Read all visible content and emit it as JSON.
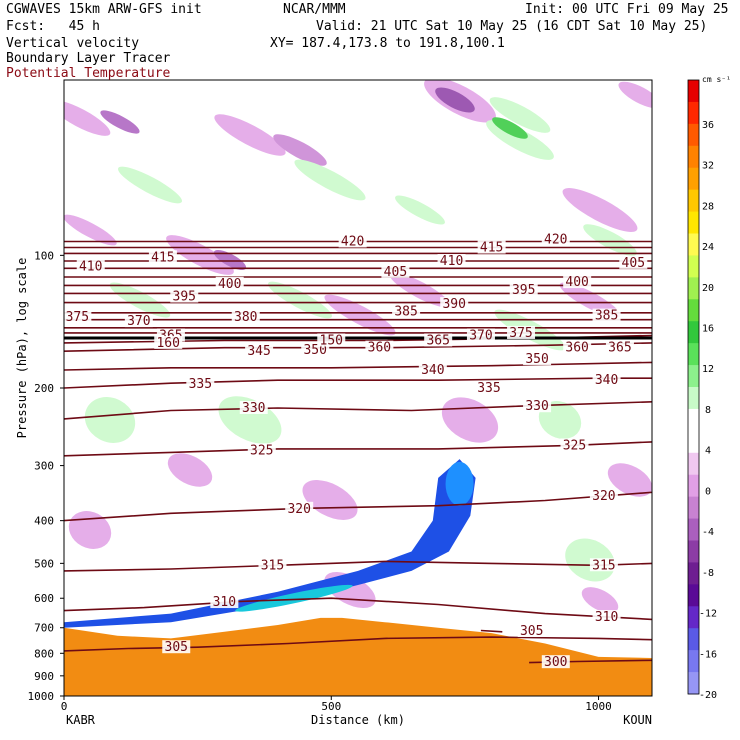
{
  "header": {
    "model_line": "CGWAVES 15km ARW-GFS init",
    "fcst_line": "Fcst:   45 h",
    "field1": "Vertical velocity",
    "field2": "Boundary Layer Tracer",
    "field3": "Potential Temperature",
    "center": "NCAR/MMM",
    "init": "Init: 00 UTC Fri 09 May 25",
    "valid": "Valid: 21 UTC Sat 10 May 25 (16 CDT Sat 10 May 25)",
    "xy": "XY= 187.4,173.8 to 191.8,100.1"
  },
  "colors": {
    "theta": "#6e0a14",
    "theta_label": "#6e0a14",
    "terrain": "#f28c12",
    "tracer_outer": "#1e50e6",
    "tracer_mid": "#1e90ff",
    "tracer_inner": "#18c8dc"
  },
  "chart_data": {
    "type": "contour",
    "xlabel": "Distance (km)",
    "ylabel": "Pressure (hPa), log scale",
    "xlim": [
      0,
      1100
    ],
    "ylim": [
      1000,
      40
    ],
    "x_ticks": [
      "0",
      "500",
      "1000"
    ],
    "x_tick_values": [
      0,
      500,
      1000
    ],
    "y_ticks": [
      "100",
      "200",
      "300",
      "400",
      "500",
      "600",
      "700",
      "800",
      "900",
      "1000"
    ],
    "y_tick_values": [
      100,
      200,
      300,
      400,
      500,
      600,
      700,
      800,
      900,
      1000
    ],
    "left_endpoint": "KABR",
    "right_endpoint": "KOUN",
    "colorbar": {
      "unit": "cm s⁻¹",
      "labels": [
        "36",
        "32",
        "28",
        "24",
        "20",
        "16",
        "12",
        "8",
        "4",
        "0",
        "-4",
        "-8",
        "-12",
        "-16",
        "-20"
      ],
      "colors": [
        "#e60000",
        "#ff2800",
        "#ff5a00",
        "#ff8200",
        "#ffa000",
        "#ffc800",
        "#ffe600",
        "#fffa50",
        "#d2ff50",
        "#a0f050",
        "#64dc3c",
        "#32c83c",
        "#5ae15a",
        "#8cf08c",
        "#c8fac8",
        "#ffffff",
        "#ffffff",
        "#f0c8f0",
        "#e1a0e6",
        "#c882d2",
        "#aa5fbe",
        "#8c3ca5",
        "#6e1e91",
        "#5a0a96",
        "#6428c8",
        "#5a5ae6",
        "#7878f0",
        "#9696f5"
      ]
    },
    "isentropes": [
      {
        "theta": 300,
        "label": "300",
        "points": [
          [
            870,
            840
          ],
          [
            960,
            835
          ],
          [
            1100,
            830
          ]
        ],
        "label_at": [
          920,
          838
        ]
      },
      {
        "theta": 305,
        "label": "305",
        "points": [
          [
            0,
            790
          ],
          [
            120,
            780
          ],
          [
            250,
            775
          ],
          [
            420,
            760
          ],
          [
            600,
            740
          ],
          [
            800,
            735
          ],
          [
            1000,
            740
          ],
          [
            1100,
            745
          ]
        ],
        "label_at": [
          210,
          775
        ]
      },
      {
        "theta": 305,
        "label": "305",
        "points": [
          [
            780,
            710
          ],
          [
            820,
            715
          ]
        ],
        "label_at": [
          875,
          712
        ]
      },
      {
        "theta": 310,
        "label": "310",
        "points": [
          [
            0,
            640
          ],
          [
            150,
            630
          ],
          [
            330,
            610
          ],
          [
            500,
            600
          ],
          [
            700,
            620
          ],
          [
            900,
            650
          ],
          [
            1100,
            670
          ]
        ],
        "label_at": [
          300,
          612
        ]
      },
      {
        "theta": 310,
        "label": "310",
        "points": [],
        "label_at": [
          1015,
          662
        ]
      },
      {
        "theta": 315,
        "label": "315",
        "points": [
          [
            0,
            520
          ],
          [
            200,
            515
          ],
          [
            400,
            505
          ],
          [
            600,
            495
          ],
          [
            800,
            500
          ],
          [
            1000,
            505
          ],
          [
            1100,
            500
          ]
        ],
        "label_at": [
          390,
          505
        ]
      },
      {
        "theta": 315,
        "label": "315",
        "points": [],
        "label_at": [
          1010,
          505
        ]
      },
      {
        "theta": 320,
        "label": "320",
        "points": [
          [
            0,
            400
          ],
          [
            200,
            385
          ],
          [
            450,
            375
          ],
          [
            700,
            370
          ],
          [
            900,
            360
          ],
          [
            1100,
            345
          ]
        ],
        "label_at": [
          440,
          376
        ]
      },
      {
        "theta": 320,
        "label": "320",
        "points": [],
        "label_at": [
          1010,
          352
        ]
      },
      {
        "theta": 325,
        "label": "325",
        "points": [
          [
            0,
            285
          ],
          [
            200,
            280
          ],
          [
            400,
            275
          ],
          [
            700,
            275
          ],
          [
            950,
            270
          ],
          [
            1100,
            265
          ]
        ],
        "label_at": [
          370,
          277
        ]
      },
      {
        "theta": 325,
        "label": "325",
        "points": [],
        "label_at": [
          955,
          270
        ]
      },
      {
        "theta": 330,
        "label": "330",
        "points": [
          [
            0,
            235
          ],
          [
            200,
            225
          ],
          [
            400,
            222
          ],
          [
            650,
            225
          ],
          [
            850,
            220
          ],
          [
            1100,
            215
          ]
        ],
        "label_at": [
          355,
          222
        ]
      },
      {
        "theta": 330,
        "label": "330",
        "points": [],
        "label_at": [
          885,
          220
        ]
      },
      {
        "theta": 335,
        "label": "335",
        "points": [
          [
            0,
            200
          ],
          [
            200,
            195
          ],
          [
            400,
            192
          ],
          [
            700,
            192
          ],
          [
            1000,
            190
          ],
          [
            1100,
            190
          ]
        ],
        "label_at": [
          255,
          196
        ]
      },
      {
        "theta": 335,
        "label": "335",
        "points": [],
        "label_at": [
          795,
          200
        ]
      },
      {
        "theta": 340,
        "label": "340",
        "points": [
          [
            0,
            182
          ],
          [
            200,
            180
          ],
          [
            500,
            180
          ],
          [
            800,
            178
          ],
          [
            1100,
            175
          ]
        ],
        "label_at": [
          690,
          182
        ]
      },
      {
        "theta": 340,
        "label": "340",
        "points": [],
        "label_at": [
          1015,
          192
        ]
      },
      {
        "theta": 345,
        "label": "345",
        "points": [
          [
            0,
            165
          ],
          [
            300,
            162
          ],
          [
            600,
            162
          ],
          [
            900,
            160
          ],
          [
            1100,
            158
          ]
        ],
        "label_at": [
          365,
          165
        ]
      },
      {
        "theta": 350,
        "label": "350",
        "points": [
          [
            0,
            158
          ],
          [
            300,
            156
          ],
          [
            600,
            156
          ],
          [
            900,
            154
          ],
          [
            1100,
            152
          ]
        ],
        "label_at": [
          470,
          164
        ]
      },
      {
        "theta": 350,
        "label": "350",
        "points": [],
        "label_at": [
          885,
          172
        ]
      },
      {
        "theta": 360,
        "label": "360",
        "points": [
          [
            0,
            150
          ],
          [
            500,
            150
          ],
          [
            1100,
            150
          ]
        ],
        "label_at": [
          590,
          162
        ]
      },
      {
        "theta": 360,
        "label": "360",
        "points": [],
        "label_at": [
          960,
          162
        ]
      },
      {
        "theta": 365,
        "label": "365",
        "points": [
          [
            0,
            146
          ],
          [
            500,
            146
          ],
          [
            1100,
            146
          ]
        ],
        "label_at": [
          200,
          152
        ]
      },
      {
        "theta": 365,
        "label": "365",
        "points": [],
        "label_at": [
          700,
          156
        ]
      },
      {
        "theta": 365,
        "label": "365",
        "points": [],
        "label_at": [
          1040,
          162
        ]
      },
      {
        "theta": 370,
        "label": "370",
        "points": [
          [
            0,
            140
          ],
          [
            500,
            140
          ],
          [
            1100,
            140
          ]
        ],
        "label_at": [
          140,
          141
        ]
      },
      {
        "theta": 370,
        "label": "370",
        "points": [],
        "label_at": [
          780,
          152
        ]
      },
      {
        "theta": 375,
        "label": "375",
        "points": [
          [
            0,
            135
          ],
          [
            500,
            135
          ],
          [
            1100,
            135
          ]
        ],
        "label_at": [
          25,
          138
        ]
      },
      {
        "theta": 375,
        "label": "375",
        "points": [],
        "label_at": [
          855,
          150
        ]
      },
      {
        "theta": 380,
        "label": "380",
        "points": [
          [
            0,
            128
          ],
          [
            500,
            128
          ],
          [
            1100,
            128
          ]
        ],
        "label_at": [
          340,
          138
        ]
      },
      {
        "theta": 385,
        "label": "385",
        "points": [
          [
            0,
            122
          ],
          [
            500,
            122
          ],
          [
            1100,
            122
          ]
        ],
        "label_at": [
          640,
          134
        ]
      },
      {
        "theta": 385,
        "label": "385",
        "points": [],
        "label_at": [
          1015,
          137
        ]
      },
      {
        "theta": 390,
        "label": "390",
        "points": [
          [
            0,
            117
          ],
          [
            500,
            117
          ],
          [
            1100,
            117
          ]
        ],
        "label_at": [
          730,
          129
        ]
      },
      {
        "theta": 395,
        "label": "395",
        "points": [
          [
            0,
            112
          ],
          [
            500,
            112
          ],
          [
            1100,
            112
          ]
        ],
        "label_at": [
          225,
          124
        ]
      },
      {
        "theta": 395,
        "label": "395",
        "points": [],
        "label_at": [
          860,
          120
        ]
      },
      {
        "theta": 400,
        "label": "400",
        "points": [
          [
            0,
            107
          ],
          [
            500,
            107
          ],
          [
            1100,
            107
          ]
        ],
        "label_at": [
          310,
          116
        ]
      },
      {
        "theta": 400,
        "label": "400",
        "points": [],
        "label_at": [
          960,
          115
        ]
      },
      {
        "theta": 405,
        "label": "405",
        "points": [
          [
            0,
            103
          ],
          [
            500,
            103
          ],
          [
            1100,
            103
          ]
        ],
        "label_at": [
          620,
          109
        ]
      },
      {
        "theta": 405,
        "label": "405",
        "points": [],
        "label_at": [
          1065,
          104
        ]
      },
      {
        "theta": 410,
        "label": "410",
        "points": [
          [
            0,
            99
          ],
          [
            500,
            99
          ],
          [
            1100,
            99
          ]
        ],
        "label_at": [
          50,
          106
        ]
      },
      {
        "theta": 410,
        "label": "410",
        "points": [],
        "label_at": [
          725,
          103
        ]
      },
      {
        "theta": 415,
        "label": "415",
        "points": [
          [
            0,
            96
          ],
          [
            500,
            96
          ],
          [
            1100,
            96
          ]
        ],
        "label_at": [
          185,
          101
        ]
      },
      {
        "theta": 415,
        "label": "415",
        "points": [],
        "label_at": [
          800,
          96
        ]
      },
      {
        "theta": 420,
        "label": "420",
        "points": [
          [
            0,
            93
          ],
          [
            500,
            93
          ],
          [
            1100,
            93
          ]
        ],
        "label_at": [
          540,
          93
        ]
      },
      {
        "theta": 420,
        "label": "420",
        "points": [],
        "label_at": [
          920,
          92
        ]
      },
      {
        "theta": 160,
        "label": "160",
        "points": [],
        "label_at": [
          195,
          158
        ]
      },
      {
        "theta": 150,
        "label": "150",
        "points": [],
        "label_at": [
          500,
          156
        ]
      }
    ],
    "tropopause_line": {
      "points": [
        [
          0,
          154
        ],
        [
          500,
          154
        ],
        [
          1100,
          154
        ]
      ]
    },
    "terrain": [
      [
        0,
        700
      ],
      [
        100,
        730
      ],
      [
        200,
        740
      ],
      [
        300,
        715
      ],
      [
        400,
        690
      ],
      [
        480,
        665
      ],
      [
        520,
        665
      ],
      [
        600,
        680
      ],
      [
        700,
        700
      ],
      [
        800,
        720
      ],
      [
        900,
        760
      ],
      [
        1000,
        815
      ],
      [
        1100,
        820
      ]
    ],
    "tracer_plume": [
      [
        0,
        700
      ],
      [
        200,
        680
      ],
      [
        400,
        620
      ],
      [
        550,
        560
      ],
      [
        650,
        520
      ],
      [
        720,
        470
      ],
      [
        760,
        390
      ],
      [
        770,
        320
      ],
      [
        740,
        290
      ],
      [
        700,
        320
      ],
      [
        690,
        400
      ],
      [
        650,
        470
      ],
      [
        550,
        520
      ],
      [
        400,
        580
      ],
      [
        200,
        650
      ],
      [
        0,
        680
      ]
    ]
  }
}
